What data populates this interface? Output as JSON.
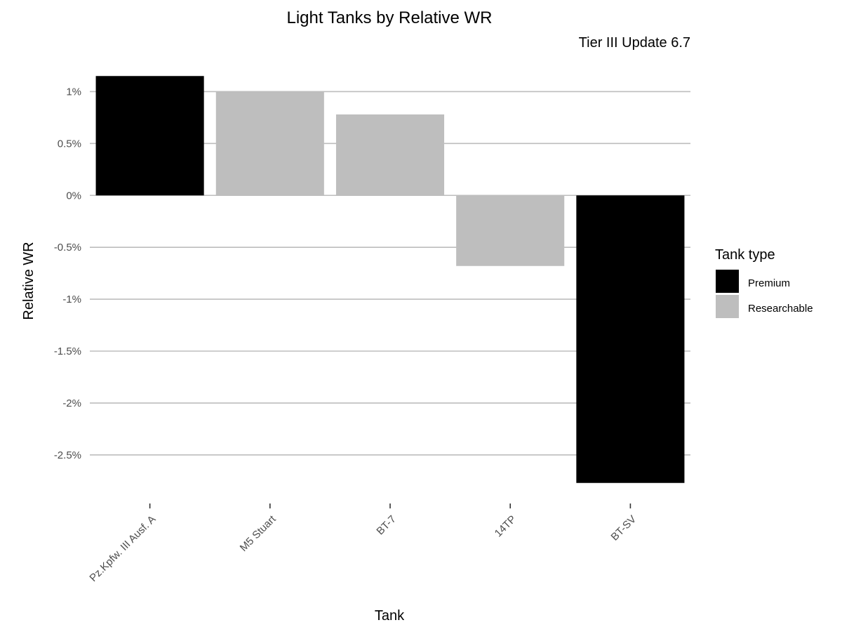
{
  "chart_data": {
    "type": "bar",
    "title": "Light Tanks by Relative WR",
    "subtitle": "Tier III Update 6.7",
    "xlabel": "Tank",
    "ylabel": "Relative WR",
    "categories": [
      "Pz.Kpfw. III Ausf. A",
      "M5 Stuart",
      "BT-7",
      "14TP",
      "BT-SV"
    ],
    "values": [
      1.15,
      1.0,
      0.78,
      -0.68,
      -2.77
    ],
    "value_unit": "%",
    "tank_type": [
      "Premium",
      "Researchable",
      "Researchable",
      "Researchable",
      "Premium"
    ],
    "y_ticks": [
      1,
      0.5,
      0,
      -0.5,
      -1,
      -1.5,
      -2,
      -2.5
    ],
    "y_tick_labels": [
      "1%",
      "0.5%",
      "0%",
      "-0.5%",
      "-1%",
      "-1.5%",
      "-2%",
      "-2.5%"
    ],
    "ylim": [
      -2.88,
      1.26
    ],
    "grid": true,
    "legend": {
      "title": "Tank type",
      "placement": "right",
      "entries": [
        {
          "label": "Premium",
          "color": "#000000"
        },
        {
          "label": "Researchable",
          "color": "#bebebe"
        }
      ]
    }
  }
}
